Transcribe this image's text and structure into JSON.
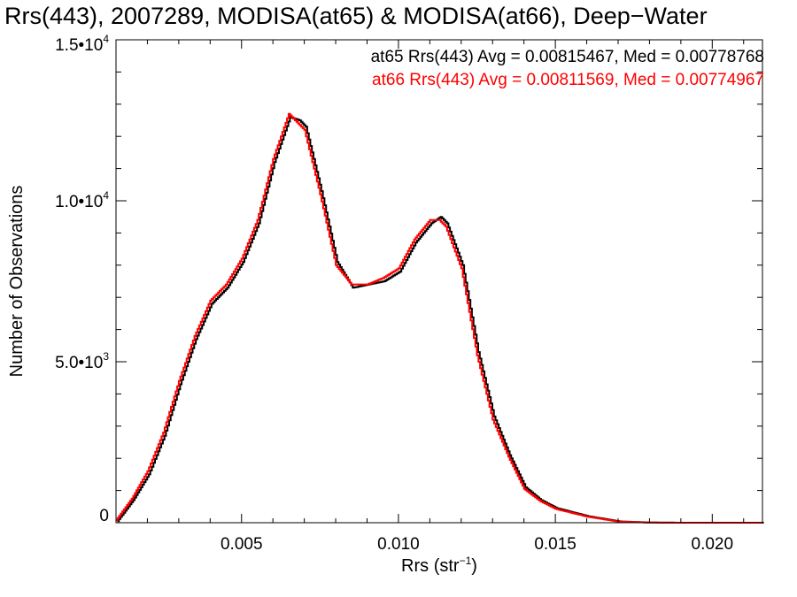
{
  "chart_data": {
    "type": "line",
    "title": "Rrs(443), 2007289, MODISA(at65) & MODISA(at66), Deep−Water",
    "xlabel": {
      "base": "Rrs (str",
      "sup": "−1",
      "tail": ")"
    },
    "ylabel": "Number of Observations",
    "xlim": [
      0.001,
      0.0216
    ],
    "ylim": [
      0,
      15000
    ],
    "x_ticks": [
      {
        "value": 0.005,
        "label": "0.005"
      },
      {
        "value": 0.01,
        "label": "0.010"
      },
      {
        "value": 0.015,
        "label": "0.015"
      },
      {
        "value": 0.02,
        "label": "0.020"
      }
    ],
    "y_ticks": [
      {
        "value": 0,
        "label": "0",
        "sup": ""
      },
      {
        "value": 5000,
        "label": "5.0•10",
        "sup": "3"
      },
      {
        "value": 10000,
        "label": "1.0•10",
        "sup": "4"
      },
      {
        "value": 15000,
        "label": "1.5•10",
        "sup": "4"
      }
    ],
    "legend_placement": "top-right",
    "grid": false,
    "series": [
      {
        "name": "at65",
        "color": "#000000",
        "stats": "at65 Rrs(443) Avg = 0.00815467, Med = 0.00778768",
        "x": [
          0.001,
          0.0015,
          0.002,
          0.0025,
          0.003,
          0.0035,
          0.004,
          0.0045,
          0.005,
          0.0055,
          0.006,
          0.0065,
          0.0068,
          0.007,
          0.0075,
          0.008,
          0.0085,
          0.009,
          0.0095,
          0.01,
          0.0105,
          0.011,
          0.0113,
          0.0115,
          0.012,
          0.0125,
          0.013,
          0.0135,
          0.014,
          0.0145,
          0.015,
          0.016,
          0.017,
          0.018,
          0.019,
          0.02,
          0.0216
        ],
        "y": [
          50,
          700,
          1500,
          2700,
          4300,
          5700,
          6800,
          7300,
          8100,
          9300,
          11200,
          12600,
          12500,
          12300,
          10300,
          8100,
          7300,
          7400,
          7500,
          7800,
          8700,
          9300,
          9500,
          9300,
          8000,
          5300,
          3300,
          2100,
          1100,
          700,
          450,
          200,
          40,
          5,
          0,
          0,
          0
        ]
      },
      {
        "name": "at66",
        "color": "#ff0000",
        "stats": "at66 Rrs(443) Avg = 0.00811569, Med = 0.00774967",
        "x": [
          0.001,
          0.0015,
          0.002,
          0.0025,
          0.003,
          0.0035,
          0.004,
          0.0045,
          0.005,
          0.0055,
          0.006,
          0.0065,
          0.0068,
          0.007,
          0.0075,
          0.008,
          0.0085,
          0.009,
          0.0095,
          0.01,
          0.0105,
          0.011,
          0.0113,
          0.0115,
          0.012,
          0.0125,
          0.013,
          0.0135,
          0.014,
          0.0145,
          0.015,
          0.016,
          0.017,
          0.018,
          0.019,
          0.02,
          0.0216
        ],
        "y": [
          80,
          750,
          1600,
          2800,
          4400,
          5800,
          6900,
          7400,
          8200,
          9400,
          11300,
          12700,
          12400,
          12200,
          10200,
          8000,
          7400,
          7400,
          7600,
          7900,
          8800,
          9400,
          9400,
          9200,
          7900,
          5200,
          3200,
          2050,
          1050,
          680,
          430,
          190,
          35,
          5,
          0,
          0,
          0
        ]
      }
    ]
  }
}
